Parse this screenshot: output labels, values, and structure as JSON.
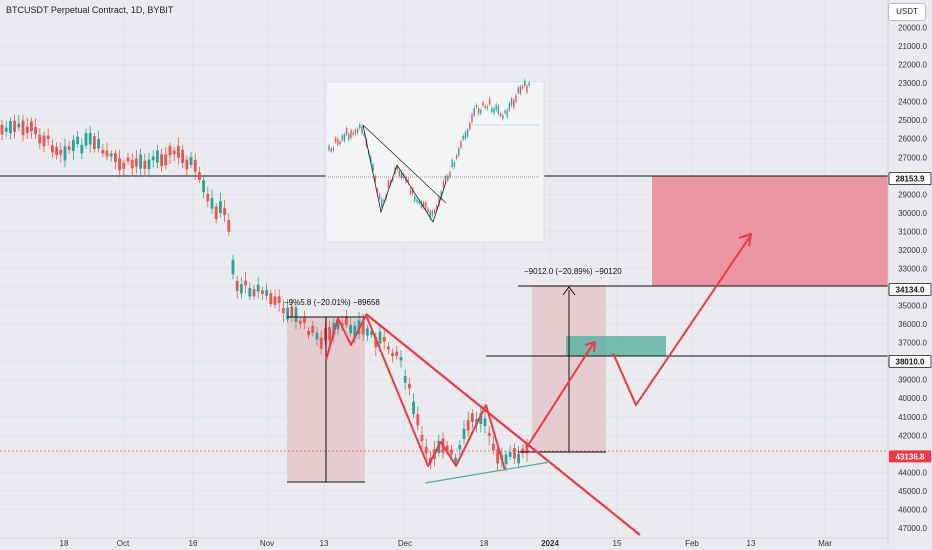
{
  "header": {
    "title": "BTCUSDT Perpetual Contract, 1D, BYBIT",
    "currency_button": "USDT"
  },
  "price_axis": {
    "ticks": [
      "20000.0",
      "21000.0",
      "22000.0",
      "23000.0",
      "24000.0",
      "25000.0",
      "26000.0",
      "27000.0",
      "28000.0",
      "29000.0",
      "30000.0",
      "31000.0",
      "32000.0",
      "33000.0",
      "34000.0",
      "35000.0",
      "36000.0",
      "37000.0",
      "38000.0",
      "39000.0",
      "40000.0",
      "41000.0",
      "42000.0",
      "43000.0",
      "44000.0",
      "45000.0",
      "46000.0",
      "47000.0"
    ],
    "tags": [
      {
        "label": "28153.9",
        "value": 28153.9,
        "style": "dark"
      },
      {
        "label": "34134.0",
        "value": 34134.0,
        "style": "dark"
      },
      {
        "label": "38010.0",
        "value": 38010.0,
        "style": "dark"
      },
      {
        "label": "43136.8",
        "value": 43136.8,
        "style": "red"
      }
    ]
  },
  "time_axis": {
    "ticks": [
      "18",
      "Oct",
      "16",
      "Nov",
      "13",
      "Dec",
      "18",
      "2024",
      "15",
      "Feb",
      "13",
      "Mar"
    ]
  },
  "annotations": {
    "measure_left": "−9%5.8 (−20.01%) −89658",
    "measure_right": "−9012.0 (−20.89%) −90120"
  },
  "colors": {
    "up": "#26a69a",
    "down": "#ef5350",
    "pattern": "#f23645",
    "target_zone": "#e8808f",
    "entry_zone": "#5fb3a5",
    "range_fill": "#e2b8be",
    "support": "#5ca98f",
    "background": "#e9ebee"
  }
}
